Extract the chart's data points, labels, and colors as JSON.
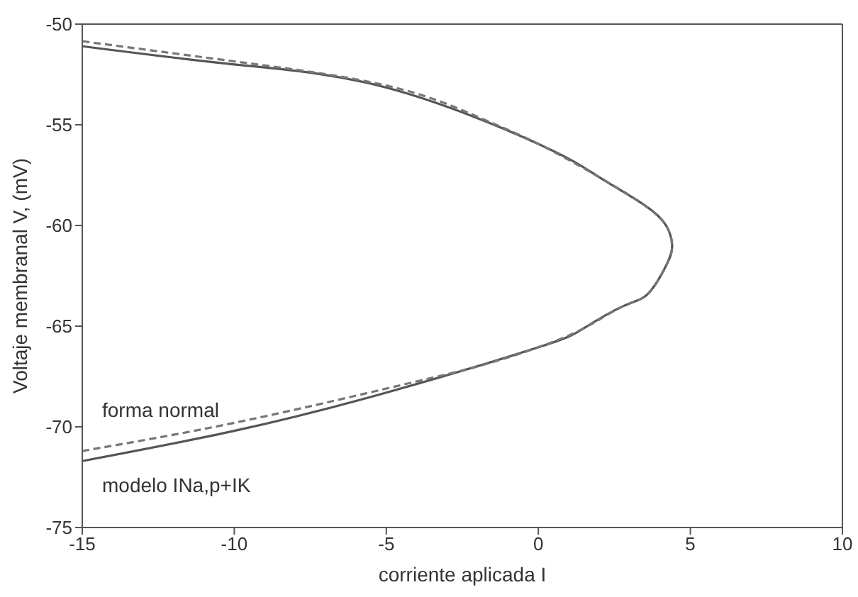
{
  "chart_data": {
    "type": "line",
    "xlabel": "corriente aplicada I",
    "ylabel": "Voltaje membranal V, (mV)",
    "xlim": [
      -15,
      10
    ],
    "ylim": [
      -75,
      -50
    ],
    "xticks": [
      -15,
      -10,
      -5,
      0,
      5,
      10
    ],
    "yticks": [
      -75,
      -70,
      -65,
      -60,
      -55,
      -50
    ],
    "marker": "none",
    "series": [
      {
        "name": "modelo INa,p+IK",
        "color": "#555555",
        "line_style": "solid",
        "x": [
          -15,
          -10,
          -5,
          0,
          1.5,
          2.8,
          3.6,
          4.2,
          4.4,
          4.2,
          3.5,
          2,
          0,
          -5,
          -10,
          -15
        ],
        "values": [
          -71.7,
          -70.2,
          -68.3,
          -66.05,
          -65.1,
          -64,
          -63.4,
          -62,
          -61,
          -60,
          -59,
          -57.6,
          -55.95,
          -53.15,
          -52,
          -51.1
        ]
      },
      {
        "name": "forma normal",
        "color": "#777777",
        "line_style": "dashed",
        "x": [
          -15,
          -10,
          -5,
          -2,
          0,
          1.5,
          2.8,
          3.6,
          4.2,
          4.4,
          4.2,
          3.5,
          2,
          0,
          -2,
          -5,
          -10,
          -15
        ],
        "values": [
          -71.2,
          -69.8,
          -68.1,
          -67,
          -66.05,
          -65.1,
          -64,
          -63.4,
          -62,
          -61,
          -60,
          -59,
          -57.6,
          -55.95,
          -54.6,
          -53.05,
          -51.85,
          -50.85
        ]
      }
    ]
  }
}
